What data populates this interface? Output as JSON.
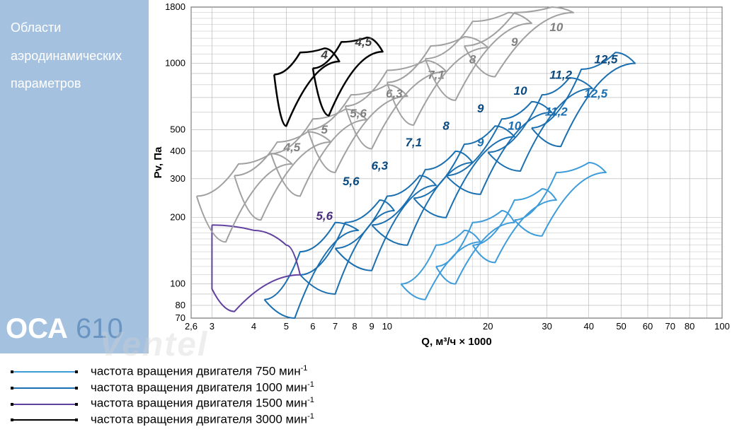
{
  "sidebar": {
    "title_line1": "Области",
    "title_line2": "аэродинамических",
    "title_line3": "параметров",
    "product_prefix": "ОСА",
    "product_number": "610"
  },
  "chart": {
    "type": "log-log-curves",
    "background_color": "#ffffff",
    "grid_color": "#b0b0b0",
    "axis_color": "#000000",
    "x_axis": {
      "label": "Q, м³/ч × 1000",
      "label_fontsize": 15,
      "min": 2.6,
      "max": 100,
      "scale": "log",
      "ticks": [
        2.6,
        3,
        4,
        5,
        6,
        7,
        8,
        9,
        10,
        20,
        30,
        40,
        50,
        60,
        70,
        80,
        100
      ]
    },
    "y_axis": {
      "label": "Pv, Па",
      "label_fontsize": 15,
      "min": 70,
      "max": 1800,
      "scale": "log",
      "ticks": [
        70,
        80,
        100,
        200,
        300,
        400,
        500,
        1000,
        1800
      ]
    },
    "curve_groups": [
      {
        "rpm": 750,
        "color": "#3d9cd9",
        "line_width": 2,
        "label_color": "#1a6fb0",
        "label_fontsize": 17,
        "label_fontweight": "bold",
        "curves": [
          {
            "label": "9",
            "label_x": 19,
            "label_y": 420,
            "points": [
              [
                11,
                100
              ],
              [
                14,
                150
              ],
              [
                17,
                175
              ],
              [
                19,
                155
              ],
              [
                13,
                85
              ],
              [
                11,
                100
              ]
            ]
          },
          {
            "label": "10",
            "label_x": 24,
            "label_y": 500,
            "points": [
              [
                14,
                120
              ],
              [
                18,
                190
              ],
              [
                22,
                215
              ],
              [
                24,
                190
              ],
              [
                16,
                100
              ],
              [
                14,
                120
              ]
            ]
          },
          {
            "label": "11,2",
            "label_x": 32,
            "label_y": 580,
            "points": [
              [
                18,
                150
              ],
              [
                24,
                240
              ],
              [
                29,
                270
              ],
              [
                32,
                240
              ],
              [
                21,
                125
              ],
              [
                18,
                150
              ]
            ]
          },
          {
            "label": "12,5",
            "label_x": 42,
            "label_y": 700,
            "points": [
              [
                24,
                195
              ],
              [
                32,
                320
              ],
              [
                40,
                355
              ],
              [
                45,
                320
              ],
              [
                29,
                165
              ],
              [
                24,
                195
              ]
            ]
          }
        ]
      },
      {
        "rpm": 1000,
        "color": "#1a6fb0",
        "line_width": 2,
        "label_color": "#0a4a80",
        "label_fontsize": 17,
        "label_fontweight": "bold",
        "curves": [
          {
            "label": "5,6",
            "label_x": 7.8,
            "label_y": 280,
            "points": [
              [
                4.3,
                85
              ],
              [
                5.5,
                140
              ],
              [
                7.0,
                190
              ],
              [
                8.2,
                175
              ],
              [
                5.3,
                70
              ],
              [
                4.3,
                85
              ]
            ]
          },
          {
            "label": "6,3",
            "label_x": 9.5,
            "label_y": 330,
            "points": [
              [
                5.5,
                110
              ],
              [
                7.5,
                190
              ],
              [
                9.5,
                240
              ],
              [
                10.5,
                215
              ],
              [
                7.0,
                90
              ],
              [
                5.5,
                110
              ]
            ]
          },
          {
            "label": "7,1",
            "label_x": 12,
            "label_y": 420,
            "points": [
              [
                7.0,
                145
              ],
              [
                10,
                250
              ],
              [
                12.5,
                310
              ],
              [
                14,
                280
              ],
              [
                9.0,
                115
              ],
              [
                7.0,
                145
              ]
            ]
          },
          {
            "label": "8",
            "label_x": 15,
            "label_y": 500,
            "points": [
              [
                9.0,
                185
              ],
              [
                13,
                330
              ],
              [
                16,
                400
              ],
              [
                18,
                355
              ],
              [
                11.5,
                150
              ],
              [
                9.0,
                185
              ]
            ]
          },
          {
            "label": "9",
            "label_x": 19,
            "label_y": 600,
            "points": [
              [
                12,
                245
              ],
              [
                17,
                430
              ],
              [
                21,
                520
              ],
              [
                24,
                465
              ],
              [
                15,
                200
              ],
              [
                12,
                245
              ]
            ]
          },
          {
            "label": "10",
            "label_x": 25,
            "label_y": 720,
            "points": [
              [
                15,
                310
              ],
              [
                22,
                560
              ],
              [
                27,
                670
              ],
              [
                31,
                600
              ],
              [
                19,
                255
              ],
              [
                15,
                310
              ]
            ]
          },
          {
            "label": "11,2",
            "label_x": 33,
            "label_y": 850,
            "points": [
              [
                20,
                395
              ],
              [
                29,
                720
              ],
              [
                35,
                860
              ],
              [
                41,
                770
              ],
              [
                25,
                325
              ],
              [
                20,
                395
              ]
            ]
          },
          {
            "label": "12,5",
            "label_x": 45,
            "label_y": 1000,
            "points": [
              [
                27,
                510
              ],
              [
                38,
                940
              ],
              [
                48,
                1120
              ],
              [
                55,
                1000
              ],
              [
                33,
                420
              ],
              [
                27,
                510
              ]
            ]
          }
        ]
      },
      {
        "rpm": 1500,
        "color": "#6040a0",
        "line_width": 2,
        "label_color": "#4a2d80",
        "label_fontsize": 17,
        "label_fontweight": "bold",
        "curves": [
          {
            "label": "5,6",
            "label_x": 6.5,
            "label_y": 195,
            "points": [
              [
                3.0,
                185
              ],
              [
                4.0,
                175
              ],
              [
                5.0,
                150
              ],
              [
                5.5,
                110
              ],
              [
                3.5,
                75
              ],
              [
                3.0,
                95
              ],
              [
                3.0,
                185
              ]
            ]
          }
        ]
      },
      {
        "rpm": 1500,
        "color": "#a0a0a0",
        "line_width": 2,
        "label_color": "#808080",
        "label_fontsize": 17,
        "label_fontweight": "bold",
        "curves": [
          {
            "label": "4,5",
            "label_x": 5.2,
            "label_y": 400,
            "points": [
              [
                2.7,
                250
              ],
              [
                3.6,
                350
              ],
              [
                4.5,
                390
              ],
              [
                5.2,
                350
              ],
              [
                3.3,
                155
              ],
              [
                2.7,
                250
              ]
            ]
          },
          {
            "label": "5",
            "label_x": 6.5,
            "label_y": 480,
            "points": [
              [
                3.5,
                310
              ],
              [
                4.7,
                440
              ],
              [
                5.8,
                490
              ],
              [
                6.8,
                440
              ],
              [
                4.2,
                195
              ],
              [
                3.5,
                310
              ]
            ]
          },
          {
            "label": "5,6",
            "label_x": 8.2,
            "label_y": 570,
            "points": [
              [
                4.5,
                390
              ],
              [
                6.0,
                560
              ],
              [
                7.5,
                620
              ],
              [
                8.7,
                555
              ],
              [
                5.5,
                250
              ],
              [
                4.5,
                390
              ]
            ]
          },
          {
            "label": "6,3",
            "label_x": 10.5,
            "label_y": 700,
            "points": [
              [
                5.8,
                500
              ],
              [
                7.8,
                720
              ],
              [
                10,
                800
              ],
              [
                11.5,
                710
              ],
              [
                7.0,
                320
              ],
              [
                5.8,
                500
              ]
            ]
          },
          {
            "label": "7,1",
            "label_x": 14,
            "label_y": 850,
            "points": [
              [
                7.5,
                640
              ],
              [
                10,
                930
              ],
              [
                13,
                1030
              ],
              [
                15,
                920
              ],
              [
                9.0,
                410
              ],
              [
                7.5,
                640
              ]
            ]
          },
          {
            "label": "8",
            "label_x": 18,
            "label_y": 1000,
            "points": [
              [
                10,
                820
              ],
              [
                13.5,
                1200
              ],
              [
                17,
                1320
              ],
              [
                20,
                1180
              ],
              [
                12,
                525
              ],
              [
                10,
                820
              ]
            ]
          },
          {
            "label": "9",
            "label_x": 24,
            "label_y": 1200,
            "points": [
              [
                13,
                1050
              ],
              [
                18,
                1550
              ],
              [
                23,
                1700
              ],
              [
                27,
                1520
              ],
              [
                16,
                680
              ],
              [
                13,
                1050
              ]
            ]
          },
          {
            "label": "10",
            "label_x": 32,
            "label_y": 1400,
            "points": [
              [
                17,
                1200
              ],
              [
                24,
                1700
              ],
              [
                31,
                1800
              ],
              [
                36,
                1700
              ],
              [
                21,
                870
              ],
              [
                17,
                1200
              ]
            ]
          }
        ]
      },
      {
        "rpm": 3000,
        "color": "#000000",
        "line_width": 2.5,
        "label_color": "#404040",
        "label_fontsize": 17,
        "label_fontweight": "bold",
        "curves": [
          {
            "label": "4",
            "label_x": 6.5,
            "label_y": 1050,
            "points": [
              [
                4.6,
                890
              ],
              [
                5.5,
                1120
              ],
              [
                6.5,
                1170
              ],
              [
                7.2,
                1020
              ],
              [
                5.0,
                520
              ],
              [
                4.6,
                890
              ]
            ]
          },
          {
            "label": "4,5",
            "label_x": 8.5,
            "label_y": 1200,
            "points": [
              [
                6.0,
                950
              ],
              [
                7.3,
                1250
              ],
              [
                8.7,
                1310
              ],
              [
                9.7,
                1130
              ],
              [
                6.7,
                580
              ],
              [
                6.0,
                950
              ]
            ]
          }
        ]
      }
    ]
  },
  "legend": {
    "rows": [
      {
        "color": "#3d9cd9",
        "text": "частота вращения двигателя   750 мин",
        "sup": "-1"
      },
      {
        "color": "#1a6fb0",
        "text": "частота вращения двигателя 1000 мин",
        "sup": "-1"
      },
      {
        "color": "#6040a0",
        "text": "частота вращения двигателя 1500 мин",
        "sup": "-1"
      },
      {
        "color": "#000000",
        "text": "частота вращения двигателя 3000 мин",
        "sup": "-1"
      }
    ]
  },
  "watermark": "Ventel"
}
